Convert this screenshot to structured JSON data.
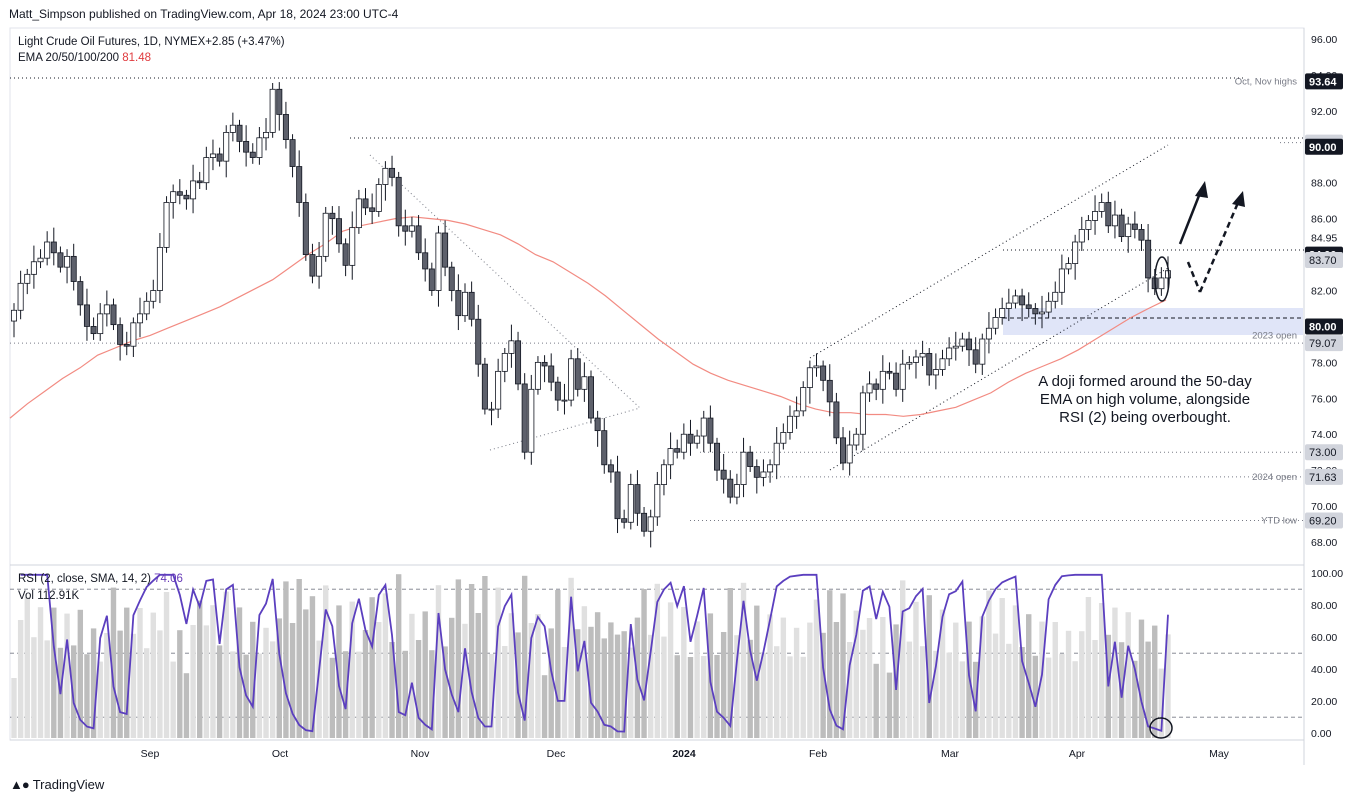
{
  "header": {
    "published": "Matt_Simpson published on TradingView.com, Apr 18, 2024 23:00 UTC-4"
  },
  "legend": {
    "symbol": "Light Crude Oil Futures, 1D, NYMEX",
    "change": "+2.85 (+3.47%)",
    "ema_label": "EMA 20/50/100/200",
    "ema_value": "81.48",
    "rsi_label": "RSI (2, close, SMA, 14, 2)",
    "rsi_value": "74.06",
    "vol_label": "Vol",
    "vol_value": "112.91K"
  },
  "annotation": "A doji formed around the 50-day EMA on high volume, alongside RSI (2) being overbought.",
  "footer": {
    "brand": "TradingView"
  },
  "colors": {
    "up": "#ffffff",
    "down": "#5d606b",
    "wick": "#131722",
    "ema": "#f28b82",
    "rsi": "#5b3fbf",
    "vol_up": "#e0e0e0",
    "vol_down": "#bdbdbd",
    "zone": "#d6dcf5"
  },
  "chart_data": [
    {
      "type": "candlestick",
      "y_range": [
        67,
        96.5
      ],
      "y_ticks": [
        "68.00",
        "70.00",
        "72.00",
        "74.00",
        "76.00",
        "78.00",
        "80.00",
        "82.00",
        "84.95",
        "86.00",
        "88.00",
        "90.00",
        "92.00",
        "94.00",
        "96.00"
      ],
      "x_ticks": [
        "Sep",
        "Oct",
        "Nov",
        "Dec",
        "2024",
        "Feb",
        "Mar",
        "Apr",
        "May"
      ],
      "price_labels": [
        {
          "text": "93.64",
          "value": 93.64,
          "style": "dark"
        },
        {
          "text": "90.23",
          "value": 90.23,
          "style": "gray"
        },
        {
          "text": "90.00",
          "value": 90.0,
          "style": "dark"
        },
        {
          "text": "84.00",
          "value": 84.0,
          "style": "dark"
        },
        {
          "text": "83.70",
          "value": 83.7,
          "style": "gray"
        },
        {
          "text": "80.00",
          "value": 80.0,
          "style": "dark"
        },
        {
          "text": "79.07",
          "value": 79.07,
          "style": "gray"
        },
        {
          "text": "73.00",
          "value": 73.0,
          "style": "gray"
        },
        {
          "text": "71.63",
          "value": 71.63,
          "style": "gray"
        },
        {
          "text": "69.20",
          "value": 69.2,
          "style": "gray"
        }
      ],
      "level_notes": [
        {
          "text": "Oct, Nov highs",
          "value": 93.64
        },
        {
          "text": "2023 open",
          "value": 79.5
        },
        {
          "text": "2024 open",
          "value": 71.63
        },
        {
          "text": "YTD low",
          "value": 69.2
        }
      ],
      "closes": [
        80.9,
        82.4,
        82.9,
        83.6,
        83.8,
        84.7,
        84.1,
        83.3,
        83.9,
        82.5,
        81.2,
        80.0,
        79.6,
        80.7,
        81.2,
        80.1,
        79.0,
        78.9,
        80.2,
        80.7,
        81.4,
        82.0,
        84.4,
        86.9,
        87.5,
        87.3,
        87.1,
        88.1,
        88.0,
        89.4,
        89.6,
        89.2,
        90.8,
        91.2,
        90.3,
        89.7,
        89.4,
        90.5,
        90.8,
        93.2,
        91.8,
        90.4,
        88.9,
        86.9,
        84.0,
        82.8,
        83.9,
        86.3,
        86.0,
        84.6,
        83.4,
        85.5,
        87.1,
        86.6,
        86.4,
        87.9,
        88.8,
        88.3,
        85.6,
        85.3,
        85.6,
        84.1,
        83.2,
        82.0,
        85.2,
        83.3,
        82.0,
        80.6,
        81.9,
        80.4,
        77.9,
        75.4,
        75.4,
        77.5,
        78.5,
        79.2,
        76.8,
        73.0,
        76.5,
        78.0,
        77.8,
        76.9,
        75.9,
        75.9,
        78.2,
        76.5,
        77.2,
        74.9,
        74.2,
        72.3,
        71.9,
        69.3,
        69.1,
        71.2,
        69.6,
        68.6,
        69.4,
        71.2,
        72.3,
        73.2,
        73.0,
        74.0,
        73.5,
        73.9,
        74.9,
        73.5,
        72.0,
        71.5,
        70.5,
        71.2,
        73.0,
        72.2,
        71.6,
        71.9,
        72.3,
        73.5,
        74.1,
        75.0,
        75.3,
        76.6,
        77.7,
        77.8,
        77.0,
        75.8,
        73.8,
        72.4,
        73.4,
        74.0,
        76.3,
        76.8,
        76.5,
        77.5,
        77.4,
        76.5,
        77.9,
        78.0,
        78.3,
        78.5,
        77.3,
        77.6,
        78.2,
        78.8,
        78.9,
        79.3,
        78.7,
        77.9,
        79.3,
        79.9,
        80.5,
        81.0,
        81.3,
        81.7,
        81.2,
        81.0,
        80.7,
        80.8,
        81.4,
        81.9,
        83.2,
        83.5,
        84.7,
        85.4,
        85.9,
        86.4,
        86.9,
        85.6,
        86.2,
        85.0,
        85.7,
        85.4,
        84.8,
        82.7,
        82.1,
        82.7,
        83.1
      ],
      "ema": [
        74.9,
        75.7,
        76.4,
        77.1,
        77.7,
        78.4,
        78.8,
        79.2,
        79.5,
        79.9,
        80.3,
        80.7,
        81.1,
        81.6,
        82.1,
        82.6,
        83.3,
        84.0,
        84.6,
        85.3,
        85.6,
        85.8,
        86.0,
        86.1,
        86.0,
        85.9,
        85.7,
        85.4,
        85.1,
        84.6,
        84.0,
        83.6,
        83.0,
        82.4,
        81.7,
        80.9,
        80.1,
        79.3,
        78.6,
        77.9,
        77.4,
        77.0,
        76.7,
        76.4,
        76.1,
        75.7,
        75.4,
        75.2,
        75.2,
        75.1,
        75.1,
        75.0,
        75.1,
        75.3,
        75.5,
        75.9,
        76.3,
        76.9,
        77.4,
        77.8,
        78.2,
        78.7,
        79.3,
        79.9,
        80.5,
        81.0,
        81.48
      ]
    },
    {
      "type": "line",
      "title": "RSI (2, close, SMA, 14, 2)",
      "y_range": [
        -3,
        102
      ],
      "y_ticks": [
        "0.00",
        "20.00",
        "40.00",
        "60.00",
        "80.00",
        "100.00"
      ],
      "levels": [
        10,
        50,
        90
      ],
      "last_value": 74.06
    },
    {
      "type": "bar",
      "title": "Vol",
      "last_value": "112.91K"
    }
  ]
}
